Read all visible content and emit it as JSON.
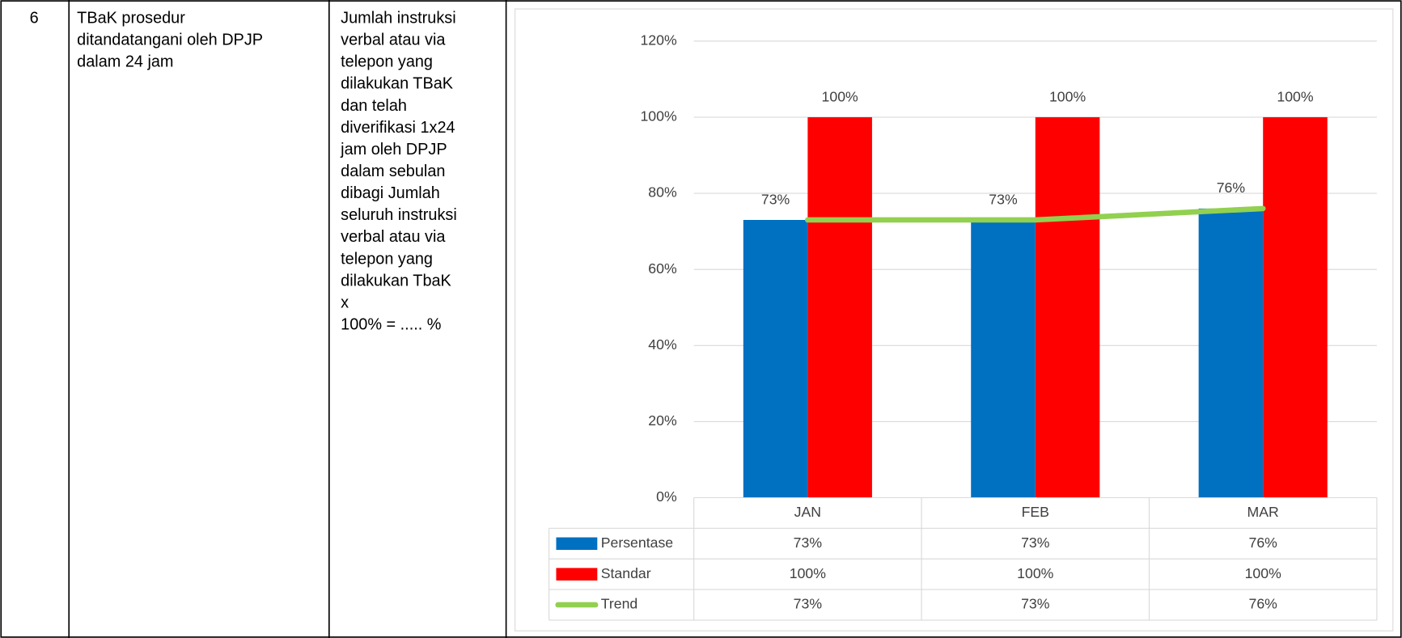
{
  "table": {
    "number": "6",
    "indicator": [
      "TBaK prosedur",
      "ditandatangani oleh DPJP",
      "dalam 24 jam"
    ],
    "formula": [
      "Jumlah instruksi",
      "verbal atau via",
      "telepon yang",
      "dilakukan TBaK",
      "dan telah",
      "diverifikasi 1x24",
      "jam oleh DPJP",
      "dalam sebulan",
      "dibagi  Jumlah",
      "seluruh instruksi",
      "verbal atau via",
      "telepon yang",
      "dilakukan TbaK",
      "x",
      "100% = ..... %"
    ]
  },
  "chart_data": {
    "type": "bar",
    "categories": [
      "JAN",
      "FEB",
      "MAR"
    ],
    "series": [
      {
        "name": "Persentase",
        "color": "#0070c0",
        "values": [
          73,
          73,
          76
        ],
        "value_labels": [
          "73%",
          "73%",
          "76%"
        ]
      },
      {
        "name": "Standar",
        "color": "#ff0000",
        "values": [
          100,
          100,
          100
        ],
        "value_labels": [
          "100%",
          "100%",
          "100%"
        ]
      },
      {
        "name": "Trend",
        "type": "line",
        "color": "#92d050",
        "values": [
          73,
          73,
          76
        ],
        "value_labels": [
          "73%",
          "73%",
          "76%"
        ]
      }
    ],
    "ylim": [
      0,
      120
    ],
    "yticks": [
      {
        "value": 0,
        "label": "0%"
      },
      {
        "value": 20,
        "label": "20%"
      },
      {
        "value": 40,
        "label": "40%"
      },
      {
        "value": 60,
        "label": "60%"
      },
      {
        "value": 80,
        "label": "80%"
      },
      {
        "value": 100,
        "label": "100%"
      },
      {
        "value": 120,
        "label": "120%"
      }
    ],
    "grid": true,
    "data_table": true
  }
}
